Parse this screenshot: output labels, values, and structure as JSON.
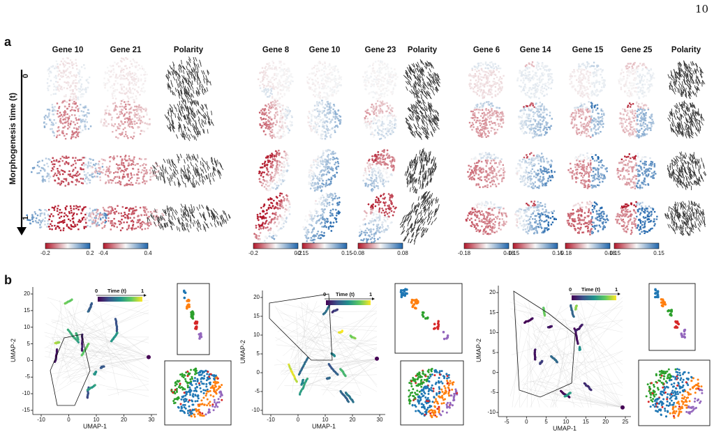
{
  "page_number": "10",
  "panel_a": {
    "letter": "a",
    "y_axis_label": "Morphogenesis time (t)",
    "time_start": "0",
    "time_end": "1",
    "groups": [
      {
        "titles": [
          "Gene 10",
          "Gene 21",
          "Polarity"
        ],
        "colorbars": [
          [
            "-0.2",
            "0.2"
          ],
          [
            "-0.4",
            "0.4"
          ]
        ]
      },
      {
        "titles": [
          "Gene 8",
          "Gene 10",
          "Gene 23",
          "Polarity"
        ],
        "colorbars": [
          [
            "-0.2",
            "0.2"
          ],
          [
            "-0.15",
            "0.15"
          ],
          [
            "-0.08",
            "0.08"
          ]
        ]
      },
      {
        "titles": [
          "Gene 6",
          "Gene 14",
          "Gene 15",
          "Gene 25",
          "Polarity"
        ],
        "colorbars": [
          [
            "-0.18",
            "0.18"
          ],
          [
            "-0.15",
            "0.15"
          ],
          [
            "-0.18",
            "0.18"
          ],
          [
            "-0.15",
            "0.15"
          ]
        ]
      }
    ]
  },
  "panel_b": {
    "letter": "b",
    "time_legend": {
      "label": "Time (t)",
      "start": "0",
      "end": "1"
    },
    "plots": [
      {
        "xlabel": "UMAP-1",
        "ylabel": "UMAP-2",
        "xticks": [
          "-10",
          "0",
          "10",
          "20",
          "30"
        ],
        "yticks": [
          "20",
          "15",
          "10",
          "5",
          "0",
          "-5",
          "-10",
          "-15"
        ]
      },
      {
        "xlabel": "UMAP-1",
        "ylabel": "UMAP-2",
        "xticks": [
          "-10",
          "0",
          "10",
          "20",
          "30"
        ],
        "yticks": [
          "20",
          "15",
          "10",
          "5",
          "0",
          "-5",
          "-10"
        ]
      },
      {
        "xlabel": "UMAP-1",
        "ylabel": "UMAP-2",
        "xticks": [
          "-5",
          "0",
          "5",
          "10",
          "15",
          "20",
          "25"
        ],
        "yticks": [
          "20",
          "15",
          "10",
          "5",
          "0",
          "-5",
          "-10"
        ]
      }
    ]
  },
  "colors": {
    "red": "#b2182b",
    "blue": "#2166ac",
    "white": "#f7f7f7",
    "viridis_start": "#440154",
    "viridis_end": "#fde725",
    "cluster": [
      "#1f77b4",
      "#ff7f0e",
      "#2ca02c",
      "#d62728",
      "#9467bd",
      "#8c564b"
    ]
  }
}
